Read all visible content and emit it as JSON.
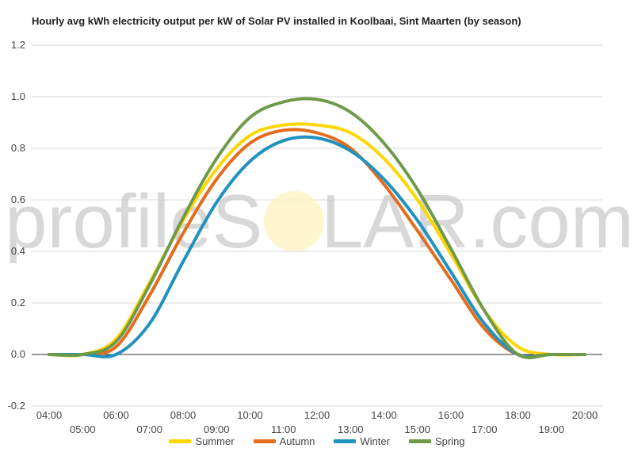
{
  "chart_data": {
    "type": "line",
    "title": "Hourly avg kWh electricity output per kW of Solar PV installed in Koolbaai, Sint Maarten (by season)",
    "x": [
      "04:00",
      "05:00",
      "06:00",
      "07:00",
      "08:00",
      "09:00",
      "10:00",
      "11:00",
      "12:00",
      "13:00",
      "14:00",
      "15:00",
      "16:00",
      "17:00",
      "18:00",
      "19:00",
      "20:00"
    ],
    "series": [
      {
        "name": "Summer",
        "color": "#ffd700",
        "values": [
          0.0,
          0.0,
          0.06,
          0.28,
          0.52,
          0.72,
          0.85,
          0.89,
          0.89,
          0.86,
          0.76,
          0.6,
          0.39,
          0.17,
          0.03,
          0.0,
          0.0
        ]
      },
      {
        "name": "Autumn",
        "color": "#e36c1f",
        "values": [
          0.0,
          0.0,
          0.03,
          0.23,
          0.47,
          0.68,
          0.82,
          0.87,
          0.86,
          0.8,
          0.66,
          0.48,
          0.29,
          0.1,
          0.0,
          0.0,
          0.0
        ]
      },
      {
        "name": "Winter",
        "color": "#2092c0",
        "values": [
          0.0,
          0.0,
          0.0,
          0.12,
          0.36,
          0.59,
          0.75,
          0.83,
          0.84,
          0.79,
          0.68,
          0.52,
          0.32,
          0.12,
          0.0,
          0.0,
          0.0
        ]
      },
      {
        "name": "Spring",
        "color": "#6f9a4a",
        "values": [
          0.0,
          0.0,
          0.05,
          0.27,
          0.53,
          0.76,
          0.92,
          0.98,
          0.99,
          0.94,
          0.82,
          0.64,
          0.41,
          0.17,
          0.0,
          0.0,
          0.0
        ]
      }
    ],
    "yticks": [
      "1.2",
      "1.0",
      "0.8",
      "0.6",
      "0.4",
      "0.2",
      "0.0",
      "-0.2"
    ],
    "ylim": [
      -0.2,
      1.2
    ],
    "grid": true,
    "legend": "bottom",
    "watermark_left": "profileS",
    "watermark_right": "LAR.com"
  }
}
